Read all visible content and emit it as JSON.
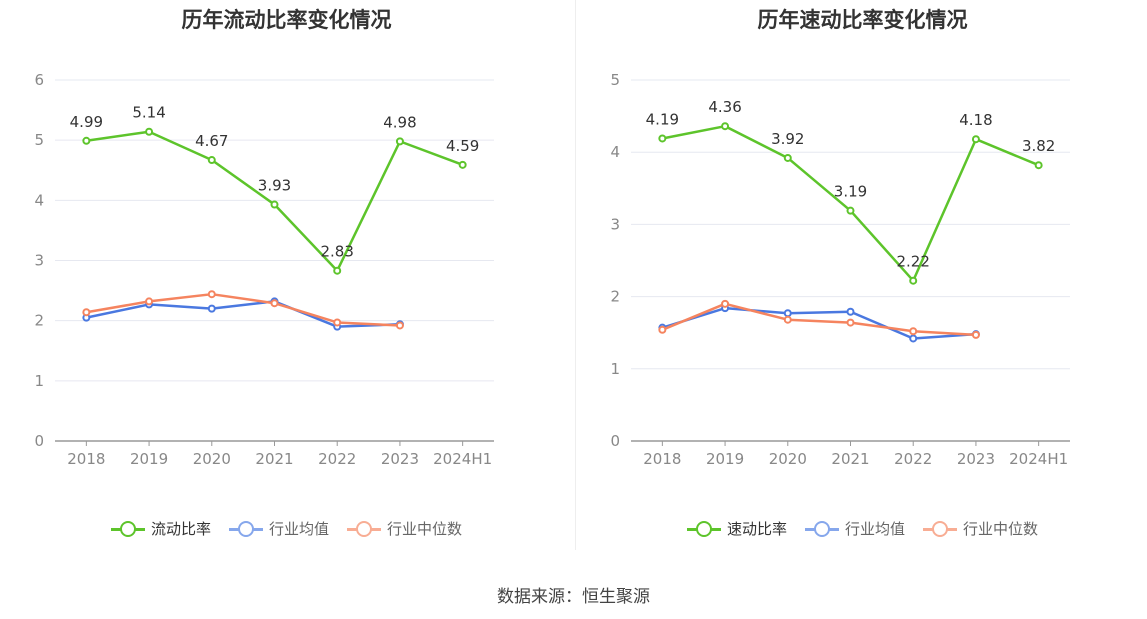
{
  "chart_data": [
    {
      "type": "line",
      "title": "历年流动比率变化情况",
      "categories": [
        "2018",
        "2019",
        "2020",
        "2021",
        "2022",
        "2023",
        "2024H1"
      ],
      "ylim": [
        0,
        6
      ],
      "yticks": [
        "0",
        "1",
        "2",
        "3",
        "4",
        "5",
        "6"
      ],
      "series": [
        {
          "name": "流动比率",
          "color": "#5dc42b",
          "values": [
            4.99,
            5.14,
            4.67,
            3.93,
            2.83,
            4.98,
            4.59
          ],
          "labels": [
            "4.99",
            "5.14",
            "4.67",
            "3.93",
            "2.83",
            "4.98",
            "4.59"
          ]
        },
        {
          "name": "行业均值",
          "color": "#4a78e0",
          "values": [
            2.05,
            2.27,
            2.2,
            2.32,
            1.9,
            1.94,
            null
          ]
        },
        {
          "name": "行业中位数",
          "color": "#f5845f",
          "values": [
            2.14,
            2.32,
            2.44,
            2.29,
            1.97,
            1.92,
            null
          ]
        }
      ]
    },
    {
      "type": "line",
      "title": "历年速动比率变化情况",
      "categories": [
        "2018",
        "2019",
        "2020",
        "2021",
        "2022",
        "2023",
        "2024H1"
      ],
      "ylim": [
        0,
        5
      ],
      "yticks": [
        "0",
        "1",
        "2",
        "3",
        "4",
        "5"
      ],
      "series": [
        {
          "name": "速动比率",
          "color": "#5dc42b",
          "values": [
            4.19,
            4.36,
            3.92,
            3.19,
            2.22,
            4.18,
            3.82
          ],
          "labels": [
            "4.19",
            "4.36",
            "3.92",
            "3.19",
            "2.22",
            "4.18",
            "3.82"
          ]
        },
        {
          "name": "行业均值",
          "color": "#4a78e0",
          "values": [
            1.57,
            1.84,
            1.77,
            1.79,
            1.42,
            1.48,
            null
          ]
        },
        {
          "name": "行业中位数",
          "color": "#f5845f",
          "values": [
            1.54,
            1.9,
            1.68,
            1.64,
            1.52,
            1.47,
            null
          ]
        }
      ]
    }
  ],
  "legend_marker_colors": [
    "#5dc42b",
    "#86a7ec",
    "#f8ad94"
  ],
  "source": "数据来源：恒生聚源"
}
